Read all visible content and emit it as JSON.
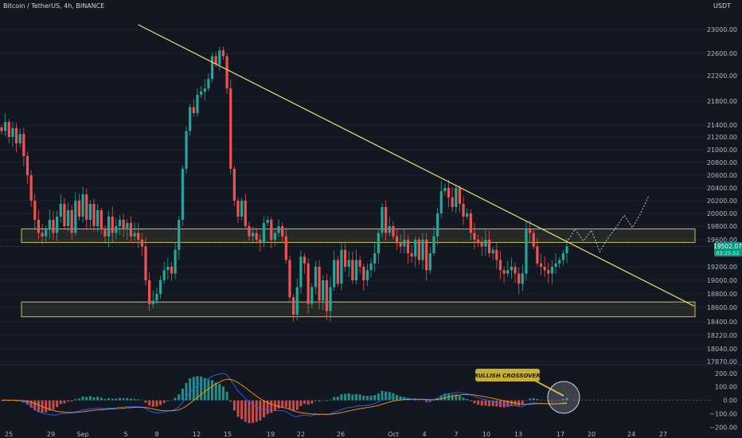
{
  "header": {
    "symbol": "Bitcoin / TetherUS, 4h, BINANCE",
    "currency": "USDT"
  },
  "chart_data": {
    "type": "candlestick",
    "price_axis": {
      "ticks": [
        23000,
        22600,
        22200,
        21800,
        21400,
        21200,
        21000,
        20800,
        20600,
        20400,
        20200,
        20000,
        19800,
        19600,
        19200,
        19000,
        18800,
        18600,
        18400,
        18220,
        18040,
        17870
      ],
      "ylim": [
        17870,
        23200
      ]
    },
    "time_axis": {
      "labels": [
        "25",
        "29",
        "Sep",
        "5",
        "8",
        "12",
        "15",
        "19",
        "22",
        "26",
        "Oct",
        "4",
        "7",
        "10",
        "13",
        "17",
        "20",
        "24",
        "27"
      ]
    },
    "current_price": {
      "price": "19502.07",
      "countdown": "03:25:52",
      "value": 19502.07
    },
    "candles_close": [
      21300,
      21450,
      21200,
      21350,
      21100,
      21250,
      20900,
      20600,
      20200,
      19900,
      19700,
      19650,
      19750,
      19900,
      19700,
      19950,
      20150,
      19800,
      20050,
      19700,
      20200,
      19950,
      20300,
      19900,
      20150,
      19800,
      20050,
      19750,
      19650,
      19950,
      19700,
      19800,
      19900,
      19750,
      19850,
      19650,
      19700,
      19600,
      19500,
      19000,
      18650,
      18700,
      18800,
      19000,
      19150,
      19200,
      19100,
      19450,
      19900,
      20700,
      21300,
      21700,
      21600,
      21900,
      21950,
      22000,
      22150,
      22550,
      22400,
      22650,
      22550,
      22000,
      20700,
      20200,
      19950,
      20200,
      19800,
      19650,
      19700,
      19600,
      19550,
      19850,
      19900,
      19600,
      19700,
      19800,
      19650,
      19300,
      18750,
      18500,
      18900,
      19350,
      19250,
      18650,
      18900,
      19200,
      18700,
      19000,
      18550,
      18900,
      19300,
      18950,
      19450,
      19200,
      19300,
      19000,
      19300,
      19200,
      19000,
      19150,
      19250,
      19400,
      19700,
      20100,
      19700,
      19800,
      19650,
      19550,
      19500,
      19600,
      19400,
      19350,
      19600,
      19300,
      19600,
      19150,
      19400,
      19650,
      20000,
      20350,
      20400,
      20250,
      20100,
      20400,
      20150,
      19950,
      20000,
      19700,
      19600,
      19550,
      19500,
      19600,
      19400,
      19450,
      19300,
      19150,
      19100,
      19150,
      19200,
      19100,
      18950,
      19100,
      19750,
      19700,
      19500,
      19250,
      19200,
      19150,
      19100,
      19200,
      19250,
      19300,
      19400,
      19502.07
    ],
    "trendline": {
      "start": {
        "bar_pos": 0.194,
        "price": 23080
      },
      "end": {
        "bar_pos": 0.935,
        "price": 18620
      }
    },
    "zones": [
      {
        "name": "resistance",
        "top": 19760,
        "bottom": 19560
      },
      {
        "name": "support",
        "top": 18680,
        "bottom": 18470
      }
    ],
    "projection": [
      [
        19560,
        19760,
        19580,
        19740,
        19420,
        19620,
        19780,
        19970,
        19780,
        20000,
        20280
      ]
    ],
    "oscillator": {
      "ticks": [
        200,
        100,
        0,
        -100,
        -200
      ],
      "tick_labels": [
        "200.00",
        "100.00",
        "0.00",
        "−100.00",
        "−200.00"
      ],
      "ylim": [
        -220,
        240
      ],
      "annotation": "BULLISH CROSSOVER"
    }
  }
}
